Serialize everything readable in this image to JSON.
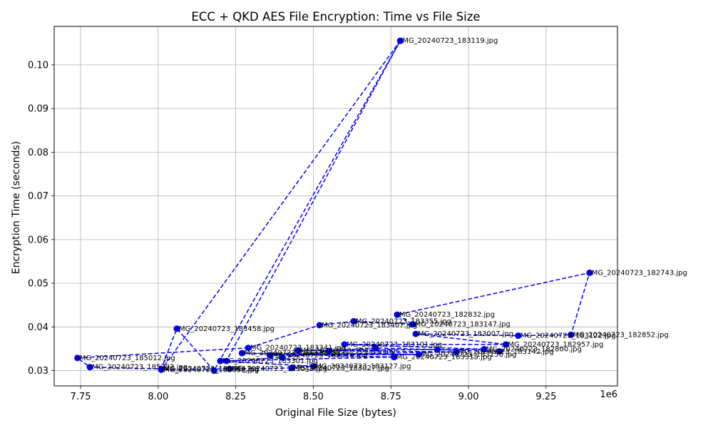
{
  "chart_data": {
    "type": "line",
    "title": "ECC + QKD AES File Encryption: Time vs File Size",
    "xlabel": "Original File Size (bytes)",
    "ylabel": "Encryption Time (seconds)",
    "x_offset_label": "1e6",
    "xlim": [
      7.665,
      9.48
    ],
    "ylim": [
      0.0265,
      0.1088
    ],
    "x_scale": 1000000,
    "x_ticks": [
      7.75,
      8.0,
      8.25,
      8.5,
      8.75,
      9.0,
      9.25
    ],
    "x_tick_labels": [
      "7.75",
      "8.00",
      "8.25",
      "8.50",
      "8.75",
      "9.00",
      "9.25"
    ],
    "y_ticks": [
      0.03,
      0.04,
      0.05,
      0.06,
      0.07,
      0.08,
      0.09,
      0.1
    ],
    "y_tick_labels": [
      "0.03",
      "0.04",
      "0.05",
      "0.06",
      "0.07",
      "0.08",
      "0.09",
      "0.10"
    ],
    "grid": true,
    "series_color": "#0000ff",
    "line_style": "dashed",
    "marker": "circle",
    "points": [
      {
        "x": 8.78,
        "y": 0.1055,
        "label": "IMG_20240723_183119.jpg"
      },
      {
        "x": 8.18,
        "y": 0.03,
        "label": ""
      },
      {
        "x": 8.06,
        "y": 0.0396,
        "label": "IMG_20240723_183458.jpg"
      },
      {
        "x": 8.01,
        "y": 0.0304,
        "label": "IMG_20240723_180404.jpg"
      },
      {
        "x": 7.78,
        "y": 0.0308,
        "label": "IMG_20240723_185202.jpg"
      },
      {
        "x": 7.74,
        "y": 0.0329,
        "label": "IMG_20240723_185012.jpg"
      },
      {
        "x": 8.29,
        "y": 0.0352,
        "label": "IMG_20240723_183341.jpg"
      },
      {
        "x": 8.52,
        "y": 0.0404,
        "label": "IMG_20240723_183407.jpg"
      },
      {
        "x": 8.63,
        "y": 0.0413,
        "label": "IMG_20240723_183355.jpg"
      },
      {
        "x": 8.82,
        "y": 0.0406,
        "label": "IMG_20240723_183147.jpg"
      },
      {
        "x": 8.77,
        "y": 0.0428,
        "label": "IMG_20240723_182832.jpg"
      },
      {
        "x": 9.39,
        "y": 0.0524,
        "label": "IMG_20240723_182743.jpg"
      },
      {
        "x": 9.33,
        "y": 0.0382,
        "label": "IMG_20240723_182852.jpg"
      },
      {
        "x": 9.16,
        "y": 0.038,
        "label": "IMG_20240723_183122.jpg"
      },
      {
        "x": 8.83,
        "y": 0.0384,
        "label": "IMG_20240723_183007.jpg"
      },
      {
        "x": 9.12,
        "y": 0.036,
        "label": "IMG_20240723_182957.jpg"
      },
      {
        "x": 8.6,
        "y": 0.036,
        "label": "IMG_20240723_183101.jpg"
      },
      {
        "x": 9.05,
        "y": 0.0349,
        "label": "IMG_20240723_182800.jpg"
      },
      {
        "x": 8.45,
        "y": 0.0346,
        "label": "IMG_20240723_183225.jpg"
      },
      {
        "x": 8.96,
        "y": 0.0343,
        "label": "IMG_20240723_183142.jpg"
      },
      {
        "x": 8.36,
        "y": 0.0335,
        "label": "IMG_20240723_183210.jpg"
      },
      {
        "x": 8.84,
        "y": 0.0337,
        "label": "IMG_20240723_183156.jpg"
      },
      {
        "x": 8.27,
        "y": 0.034,
        "label": "IMG_20240723_183234.jpg"
      },
      {
        "x": 8.76,
        "y": 0.0331,
        "label": "IMG_20240723_183315.jpg"
      },
      {
        "x": 8.2,
        "y": 0.0322,
        "label": "IMG_20240723_183301.jpg"
      },
      {
        "x": 8.5,
        "y": 0.031,
        "label": "IMG_20240723_183127.jpg"
      },
      {
        "x": 8.43,
        "y": 0.0306,
        "label": "IMG_20240723_183027.jpg"
      },
      {
        "x": 8.23,
        "y": 0.0304,
        "label": "IMG_20240723_183043.jpg"
      },
      {
        "x": 8.01,
        "y": 0.0302,
        "label": "IMG_20240723_183052.jpg"
      },
      {
        "x": 8.78,
        "y": 0.1055,
        "label": ""
      },
      {
        "x": 8.22,
        "y": 0.0322,
        "label": ""
      },
      {
        "x": 8.4,
        "y": 0.033,
        "label": ""
      },
      {
        "x": 8.55,
        "y": 0.0345,
        "label": ""
      },
      {
        "x": 8.7,
        "y": 0.0352,
        "label": ""
      },
      {
        "x": 8.9,
        "y": 0.0348,
        "label": ""
      },
      {
        "x": 9.1,
        "y": 0.0344,
        "label": ""
      }
    ]
  }
}
